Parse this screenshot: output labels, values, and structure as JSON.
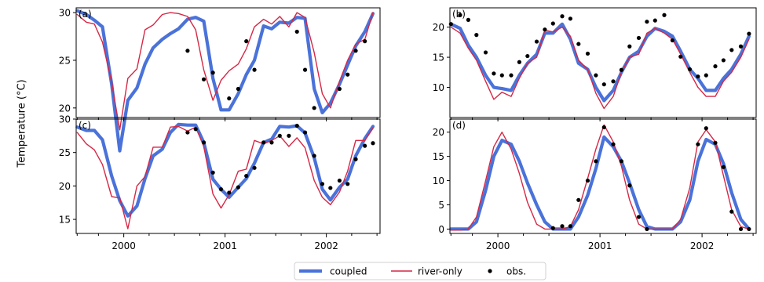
{
  "figure": {
    "ylabel": "Temperature (°C)",
    "colors": {
      "coupled": "#4a72d9",
      "river_only": "#d62745",
      "obs": "#000000"
    }
  },
  "legend": {
    "placement": "bottom-center",
    "entries": [
      {
        "key": "coupled",
        "label": "coupled"
      },
      {
        "key": "river_only",
        "label": "river-only"
      },
      {
        "key": "obs",
        "label": "obs."
      }
    ]
  },
  "chart_data": [
    {
      "panel": "(a)",
      "type": "line",
      "xlim": [
        1999.53,
        2002.53
      ],
      "ylim": [
        19.0,
        30.5
      ],
      "yticks": [
        20,
        25,
        30
      ],
      "xticks": [
        2000,
        2001,
        2002
      ],
      "minor_xticks": [
        1999.54,
        1999.75,
        2000.25,
        2000.5,
        2000.75,
        2001.25,
        2001.5,
        2001.75,
        2002.25,
        2002.5
      ],
      "show_xticklabels": false,
      "series": [
        {
          "key": "coupled",
          "x": [
            1999.54,
            1999.63,
            1999.71,
            1999.79,
            1999.88,
            1999.96,
            2000.04,
            2000.13,
            2000.21,
            2000.29,
            2000.38,
            2000.46,
            2000.54,
            2000.63,
            2000.71,
            2000.79,
            2000.88,
            2000.96,
            2001.04,
            2001.13,
            2001.21,
            2001.29,
            2001.38,
            2001.46,
            2001.54,
            2001.63,
            2001.71,
            2001.79,
            2001.88,
            2001.96,
            2002.04,
            2002.13,
            2002.21,
            2002.29,
            2002.38,
            2002.46
          ],
          "y": [
            30.2,
            29.8,
            29.2,
            28.5,
            22.5,
            15.5,
            20.8,
            22.1,
            24.6,
            26.3,
            27.2,
            27.8,
            28.3,
            29.3,
            29.5,
            29.1,
            23.1,
            19.8,
            19.8,
            21.5,
            23.5,
            25.0,
            28.6,
            28.3,
            29.0,
            28.9,
            29.5,
            29.4,
            22.0,
            19.5,
            20.5,
            22.5,
            24.5,
            26.5,
            28.0,
            29.9
          ]
        },
        {
          "key": "river_only",
          "x": [
            1999.54,
            1999.63,
            1999.71,
            1999.79,
            1999.88,
            1999.96,
            2000.04,
            2000.13,
            2000.21,
            2000.29,
            2000.38,
            2000.46,
            2000.54,
            2000.63,
            2000.71,
            2000.79,
            2000.88,
            2000.96,
            2001.04,
            2001.13,
            2001.21,
            2001.29,
            2001.38,
            2001.46,
            2001.54,
            2001.63,
            2001.71,
            2001.79,
            2001.88,
            2001.96,
            2002.04,
            2002.13,
            2002.21,
            2002.29,
            2002.38,
            2002.46
          ],
          "y": [
            29.8,
            29.0,
            28.8,
            26.9,
            22.7,
            17.7,
            23.1,
            24.1,
            28.2,
            28.7,
            29.8,
            30.0,
            29.9,
            29.6,
            28.2,
            24.0,
            20.8,
            22.9,
            23.9,
            24.6,
            26.2,
            28.5,
            29.3,
            28.8,
            29.6,
            28.5,
            30.0,
            29.5,
            25.8,
            21.5,
            20.0,
            22.8,
            25.0,
            26.7,
            27.2,
            30.0
          ]
        },
        {
          "key": "obs",
          "x": [
            2000.63,
            2000.79,
            2000.88,
            2001.04,
            2001.13,
            2001.21,
            2001.29,
            2001.71,
            2001.79,
            2001.88,
            2002.13,
            2002.21,
            2002.29,
            2002.38
          ],
          "y": [
            26.0,
            23.0,
            23.7,
            21.0,
            22.0,
            27.0,
            24.0,
            28.0,
            24.0,
            20.0,
            22.0,
            23.5,
            26.0,
            27.0
          ]
        }
      ]
    },
    {
      "panel": "(b)",
      "type": "line",
      "xlim": [
        1999.53,
        2002.53
      ],
      "ylim": [
        5.0,
        23.2
      ],
      "yticks": [
        10,
        15,
        20
      ],
      "xticks": [
        2000,
        2001,
        2002
      ],
      "minor_xticks": [
        1999.54,
        1999.75,
        2000.25,
        2000.5,
        2000.75,
        2001.25,
        2001.5,
        2001.75,
        2002.25,
        2002.5
      ],
      "show_xticklabels": false,
      "series": [
        {
          "key": "coupled",
          "x": [
            1999.54,
            1999.63,
            1999.71,
            1999.79,
            1999.88,
            1999.96,
            2000.04,
            2000.13,
            2000.21,
            2000.29,
            2000.38,
            2000.46,
            2000.54,
            2000.63,
            2000.71,
            2000.79,
            2000.88,
            2000.96,
            2001.04,
            2001.13,
            2001.21,
            2001.29,
            2001.38,
            2001.46,
            2001.54,
            2001.63,
            2001.71,
            2001.79,
            2001.88,
            2001.96,
            2002.04,
            2002.13,
            2002.21,
            2002.29,
            2002.38,
            2002.46
          ],
          "y": [
            20.5,
            19.8,
            17.0,
            15.0,
            12.0,
            10.0,
            9.8,
            9.5,
            12.0,
            14.0,
            15.5,
            19.0,
            19.0,
            20.5,
            18.0,
            14.0,
            13.0,
            10.0,
            7.8,
            9.5,
            12.5,
            15.0,
            16.0,
            18.5,
            19.8,
            19.3,
            18.5,
            16.0,
            13.0,
            11.5,
            9.5,
            9.5,
            11.5,
            13.0,
            15.5,
            18.5
          ]
        },
        {
          "key": "river_only",
          "x": [
            1999.54,
            1999.63,
            1999.71,
            1999.79,
            1999.88,
            1999.96,
            2000.04,
            2000.13,
            2000.21,
            2000.29,
            2000.38,
            2000.46,
            2000.54,
            2000.63,
            2000.71,
            2000.79,
            2000.88,
            2000.96,
            2001.04,
            2001.13,
            2001.21,
            2001.29,
            2001.38,
            2001.46,
            2001.54,
            2001.63,
            2001.71,
            2001.79,
            2001.88,
            2001.96,
            2002.04,
            2002.13,
            2002.21,
            2002.29,
            2002.38,
            2002.46
          ],
          "y": [
            20.0,
            19.0,
            16.5,
            14.5,
            11.0,
            8.0,
            9.2,
            8.5,
            11.5,
            14.0,
            15.0,
            19.5,
            19.2,
            20.0,
            18.5,
            14.5,
            13.0,
            9.0,
            6.5,
            8.5,
            12.5,
            15.0,
            15.5,
            19.0,
            19.8,
            19.0,
            18.0,
            15.5,
            12.5,
            10.0,
            8.5,
            8.5,
            11.0,
            12.5,
            15.0,
            18.0
          ]
        },
        {
          "key": "obs",
          "x": [
            1999.54,
            1999.63,
            1999.71,
            1999.79,
            1999.88,
            1999.96,
            2000.04,
            2000.13,
            2000.21,
            2000.29,
            2000.38,
            2000.46,
            2000.54,
            2000.63,
            2000.71,
            2000.79,
            2000.88,
            2000.96,
            2001.04,
            2001.13,
            2001.21,
            2001.29,
            2001.38,
            2001.46,
            2001.54,
            2001.63,
            2001.71,
            2001.79,
            2001.88,
            2001.96,
            2002.04,
            2002.13,
            2002.21,
            2002.29,
            2002.38,
            2002.46
          ],
          "y": [
            20.5,
            22.0,
            21.2,
            18.7,
            15.8,
            12.3,
            12.0,
            12.0,
            14.2,
            15.2,
            17.6,
            19.6,
            20.6,
            21.8,
            21.4,
            17.2,
            15.6,
            12.0,
            10.5,
            11.0,
            12.9,
            16.8,
            18.2,
            20.9,
            21.1,
            22.0,
            17.8,
            15.1,
            13.0,
            11.8,
            12.0,
            13.5,
            14.5,
            16.2,
            16.8,
            18.9
          ]
        }
      ]
    },
    {
      "panel": "(c)",
      "type": "line",
      "xlim": [
        1999.53,
        2002.53
      ],
      "ylim": [
        12.9,
        30.0
      ],
      "yticks": [
        15,
        20,
        25,
        30
      ],
      "xticks": [
        2000,
        2001,
        2002
      ],
      "minor_xticks": [
        1999.54,
        1999.75,
        2000.25,
        2000.5,
        2000.75,
        2001.25,
        2001.5,
        2001.75,
        2002.25,
        2002.5
      ],
      "show_xticklabels": true,
      "series": [
        {
          "key": "coupled",
          "x": [
            1999.54,
            1999.63,
            1999.71,
            1999.79,
            1999.88,
            1999.96,
            2000.04,
            2000.13,
            2000.21,
            2000.29,
            2000.38,
            2000.46,
            2000.54,
            2000.63,
            2000.71,
            2000.79,
            2000.88,
            2000.96,
            2001.04,
            2001.13,
            2001.21,
            2001.29,
            2001.38,
            2001.46,
            2001.54,
            2001.63,
            2001.71,
            2001.79,
            2001.88,
            2001.96,
            2002.04,
            2002.13,
            2002.21,
            2002.29,
            2002.38,
            2002.46
          ],
          "y": [
            28.8,
            28.3,
            28.3,
            26.9,
            21.5,
            17.8,
            15.5,
            17.0,
            21.1,
            24.5,
            25.5,
            28.0,
            29.2,
            29.1,
            29.1,
            26.5,
            21.0,
            19.5,
            18.3,
            19.8,
            21.1,
            23.4,
            26.5,
            27.0,
            28.9,
            28.8,
            29.0,
            27.9,
            24.2,
            19.5,
            17.9,
            19.8,
            21.0,
            24.5,
            27.1,
            28.9
          ]
        },
        {
          "key": "river_only",
          "x": [
            1999.54,
            1999.63,
            1999.71,
            1999.79,
            1999.88,
            1999.96,
            2000.04,
            2000.13,
            2000.21,
            2000.29,
            2000.38,
            2000.46,
            2000.54,
            2000.63,
            2000.71,
            2000.79,
            2000.88,
            2000.96,
            2001.04,
            2001.13,
            2001.21,
            2001.29,
            2001.38,
            2001.46,
            2001.54,
            2001.63,
            2001.71,
            2001.79,
            2001.88,
            2001.96,
            2002.04,
            2002.13,
            2002.21,
            2002.29,
            2002.38,
            2002.46
          ],
          "y": [
            28.0,
            26.3,
            25.4,
            23.2,
            18.4,
            18.2,
            13.6,
            20.0,
            21.4,
            25.8,
            25.8,
            28.8,
            28.9,
            28.2,
            28.8,
            25.9,
            18.8,
            16.7,
            18.7,
            22.2,
            22.5,
            26.8,
            26.3,
            26.8,
            27.5,
            25.9,
            27.2,
            25.7,
            20.8,
            18.3,
            17.2,
            19.1,
            22.2,
            26.8,
            26.8,
            28.7
          ]
        },
        {
          "key": "obs",
          "x": [
            2000.63,
            2000.71,
            2000.79,
            2000.88,
            2000.96,
            2001.04,
            2001.13,
            2001.21,
            2001.29,
            2001.38,
            2001.46,
            2001.54,
            2001.63,
            2001.71,
            2001.79,
            2001.88,
            2001.96,
            2002.04,
            2002.13,
            2002.21,
            2002.29,
            2002.38,
            2002.46
          ],
          "y": [
            28.0,
            28.5,
            26.5,
            22.0,
            19.5,
            19.0,
            19.8,
            21.5,
            22.7,
            26.5,
            26.5,
            27.5,
            27.5,
            29.0,
            28.0,
            24.5,
            20.3,
            19.7,
            20.8,
            20.3,
            24.0,
            26.0,
            26.4
          ]
        }
      ]
    },
    {
      "panel": "(d)",
      "type": "line",
      "xlim": [
        1999.53,
        2002.53
      ],
      "ylim": [
        -0.9,
        22.7
      ],
      "yticks": [
        0,
        5,
        10,
        15,
        20
      ],
      "xticks": [
        2000,
        2001,
        2002
      ],
      "minor_xticks": [
        1999.54,
        1999.75,
        2000.25,
        2000.5,
        2000.75,
        2001.25,
        2001.5,
        2001.75,
        2002.25,
        2002.5
      ],
      "show_xticklabels": true,
      "series": [
        {
          "key": "coupled",
          "x": [
            1999.54,
            1999.63,
            1999.71,
            1999.79,
            1999.88,
            1999.96,
            2000.04,
            2000.13,
            2000.21,
            2000.29,
            2000.38,
            2000.46,
            2000.54,
            2000.63,
            2000.71,
            2000.79,
            2000.88,
            2000.96,
            2001.04,
            2001.13,
            2001.21,
            2001.29,
            2001.38,
            2001.46,
            2001.54,
            2001.63,
            2001.71,
            2001.79,
            2001.88,
            2001.96,
            2002.04,
            2002.13,
            2002.21,
            2002.29,
            2002.38,
            2002.46
          ],
          "y": [
            0,
            0,
            0,
            1.5,
            8.0,
            15.0,
            18.3,
            17.5,
            14.0,
            9.5,
            5.0,
            1.5,
            0,
            0,
            0,
            2.5,
            7.0,
            12.5,
            19.0,
            17.0,
            14.0,
            9.5,
            4.0,
            0.5,
            0,
            0,
            0,
            1.5,
            6.0,
            14.0,
            18.5,
            17.5,
            13.5,
            7.5,
            2.0,
            0
          ]
        },
        {
          "key": "river_only",
          "x": [
            1999.54,
            1999.63,
            1999.71,
            1999.79,
            1999.88,
            1999.96,
            2000.04,
            2000.13,
            2000.21,
            2000.29,
            2000.38,
            2000.46,
            2000.54,
            2000.63,
            2000.71,
            2000.79,
            2000.88,
            2000.96,
            2001.04,
            2001.13,
            2001.21,
            2001.29,
            2001.38,
            2001.46,
            2001.54,
            2001.63,
            2001.71,
            2001.79,
            2001.88,
            2001.96,
            2002.04,
            2002.13,
            2002.21,
            2002.29,
            2002.38,
            2002.46
          ],
          "y": [
            -0.2,
            -0.2,
            0,
            2.5,
            10.0,
            17.0,
            20.0,
            16.5,
            11.5,
            5.5,
            1.0,
            0,
            0,
            0,
            0.5,
            4.0,
            10.5,
            16.5,
            21.5,
            18.0,
            13.0,
            6.0,
            1.0,
            0,
            0,
            0,
            0,
            2.0,
            8.5,
            18.0,
            20.5,
            18.0,
            11.0,
            4.0,
            0.5,
            0
          ]
        },
        {
          "key": "obs",
          "x": [
            2000.54,
            2000.63,
            2000.71,
            2000.79,
            2000.88,
            2000.96,
            2001.04,
            2001.13,
            2001.21,
            2001.29,
            2001.38,
            2001.46,
            2001.96,
            2002.04,
            2002.13,
            2002.21,
            2002.29,
            2002.38,
            2002.46
          ],
          "y": [
            0.2,
            0.6,
            0.6,
            6.0,
            10.0,
            14.0,
            21.0,
            17.5,
            14.0,
            9.0,
            2.5,
            0,
            17.5,
            20.8,
            17.8,
            12.8,
            3.6,
            0,
            0
          ]
        }
      ]
    }
  ]
}
